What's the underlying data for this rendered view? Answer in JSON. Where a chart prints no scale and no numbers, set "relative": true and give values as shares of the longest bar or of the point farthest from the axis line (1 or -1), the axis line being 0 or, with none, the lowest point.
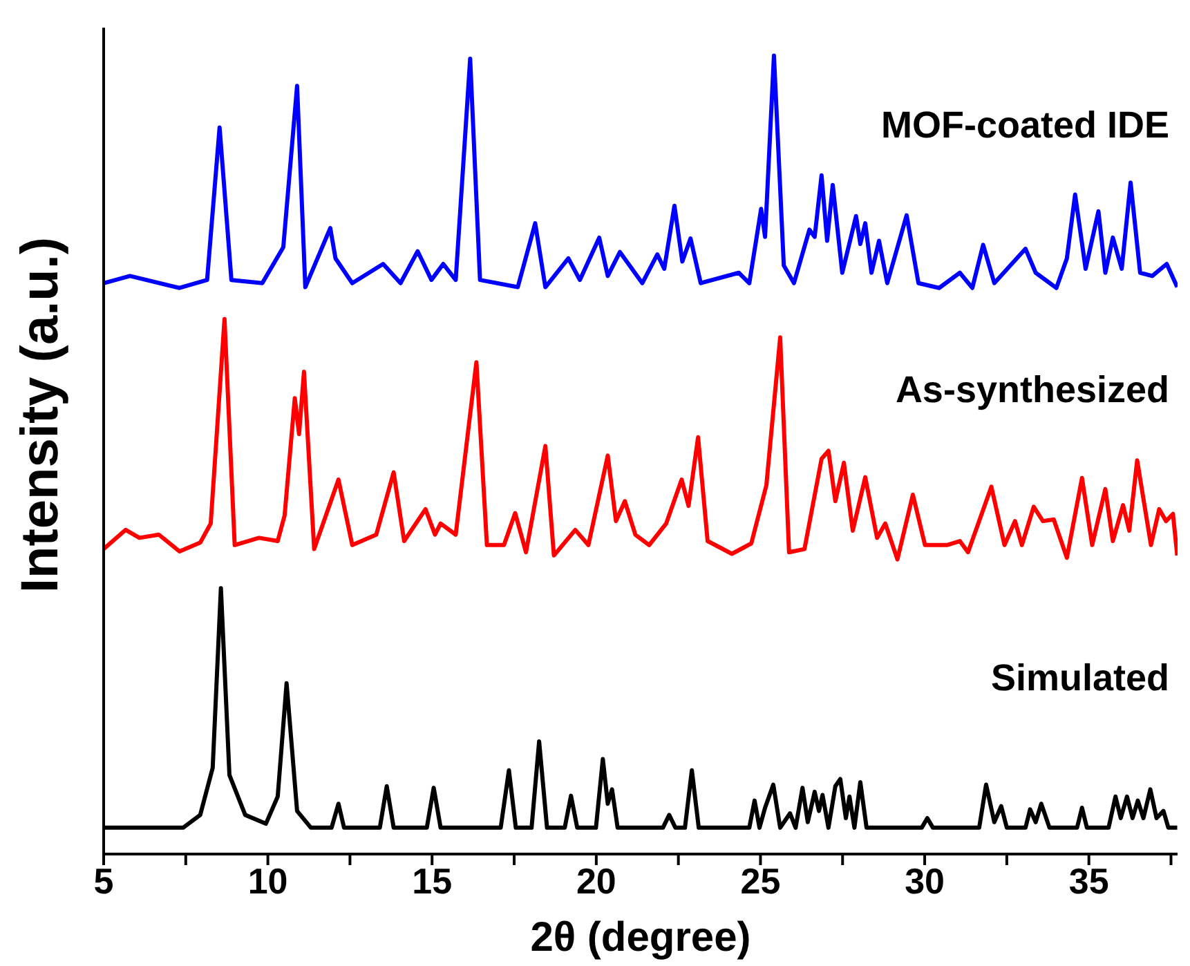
{
  "chart_data": {
    "type": "line",
    "relative": true,
    "xlabel": "2θ (degree)",
    "ylabel": "Intensity (a.u.)",
    "xlim": [
      5,
      37.7
    ],
    "xticks": [
      5,
      {
        "value": 7.5,
        "label": null
      },
      10,
      {
        "value": 12.5,
        "label": null
      },
      15,
      {
        "value": 17.5,
        "label": null
      },
      20,
      {
        "value": 22.5,
        "label": null
      },
      25,
      {
        "value": 27.5,
        "label": null
      },
      30,
      {
        "value": 32.5,
        "label": null
      },
      35,
      {
        "value": 37.5,
        "label": null
      }
    ],
    "series": [
      {
        "name": "MOF-coated IDE",
        "color": "#0000ff",
        "x": [
          5.0,
          5.8,
          7.31,
          8.15,
          8.53,
          8.89,
          9.83,
          10.47,
          10.89,
          11.14,
          11.9,
          12.06,
          12.57,
          13.51,
          14.04,
          14.56,
          14.98,
          15.34,
          15.72,
          16.16,
          16.46,
          17.61,
          18.14,
          18.45,
          19.15,
          19.5,
          20.09,
          20.35,
          20.72,
          21.4,
          21.86,
          22.07,
          22.38,
          22.62,
          22.87,
          23.18,
          24.34,
          24.66,
          25.02,
          25.14,
          25.41,
          25.71,
          26.02,
          26.49,
          26.65,
          26.86,
          27.03,
          27.2,
          27.49,
          27.91,
          28.04,
          28.19,
          28.38,
          28.61,
          28.86,
          29.45,
          29.81,
          30.44,
          31.07,
          31.45,
          31.78,
          32.12,
          33.07,
          33.38,
          34.01,
          34.33,
          34.58,
          34.9,
          35.29,
          35.5,
          35.73,
          36.0,
          36.27,
          36.56,
          36.93,
          37.37,
          37.69
        ],
        "values": [
          0.715,
          0.724,
          0.709,
          0.719,
          0.91,
          0.719,
          0.715,
          0.76,
          0.962,
          0.71,
          0.784,
          0.746,
          0.715,
          0.739,
          0.715,
          0.755,
          0.719,
          0.739,
          0.719,
          0.996,
          0.719,
          0.71,
          0.79,
          0.71,
          0.746,
          0.719,
          0.772,
          0.724,
          0.754,
          0.715,
          0.751,
          0.733,
          0.812,
          0.742,
          0.771,
          0.715,
          0.728,
          0.715,
          0.808,
          0.773,
          1.0,
          0.737,
          0.715,
          0.782,
          0.773,
          0.85,
          0.768,
          0.838,
          0.728,
          0.799,
          0.764,
          0.79,
          0.728,
          0.768,
          0.715,
          0.8,
          0.715,
          0.709,
          0.728,
          0.709,
          0.763,
          0.715,
          0.758,
          0.728,
          0.709,
          0.746,
          0.826,
          0.733,
          0.805,
          0.728,
          0.772,
          0.733,
          0.841,
          0.728,
          0.724,
          0.739,
          0.71
        ]
      },
      {
        "name": "As-synthesized",
        "color": "#ff0000",
        "x": [
          5.0,
          5.67,
          6.09,
          6.68,
          7.31,
          7.94,
          8.26,
          8.68,
          8.99,
          9.73,
          10.3,
          10.51,
          10.82,
          10.95,
          11.1,
          11.41,
          12.15,
          12.57,
          13.3,
          13.83,
          14.15,
          14.8,
          15.09,
          15.26,
          15.72,
          16.35,
          16.67,
          17.19,
          17.53,
          17.86,
          18.45,
          18.71,
          19.36,
          19.76,
          20.35,
          20.6,
          20.87,
          21.19,
          21.61,
          22.13,
          22.6,
          22.81,
          23.1,
          23.39,
          24.13,
          24.72,
          25.18,
          25.6,
          25.87,
          26.34,
          26.86,
          27.07,
          27.28,
          27.54,
          27.81,
          28.19,
          28.55,
          28.8,
          29.17,
          29.64,
          30.01,
          30.68,
          31.07,
          31.32,
          32.03,
          32.43,
          32.75,
          32.96,
          33.32,
          33.6,
          33.93,
          34.33,
          34.79,
          35.1,
          35.5,
          35.73,
          36.04,
          36.23,
          36.47,
          36.89,
          37.14,
          37.35,
          37.56,
          37.69
        ],
        "values": [
          0.382,
          0.406,
          0.396,
          0.4,
          0.379,
          0.39,
          0.414,
          0.67,
          0.387,
          0.396,
          0.392,
          0.424,
          0.571,
          0.526,
          0.604,
          0.382,
          0.469,
          0.387,
          0.4,
          0.478,
          0.392,
          0.432,
          0.4,
          0.414,
          0.4,
          0.616,
          0.387,
          0.387,
          0.427,
          0.378,
          0.511,
          0.374,
          0.406,
          0.387,
          0.499,
          0.417,
          0.442,
          0.4,
          0.387,
          0.414,
          0.469,
          0.436,
          0.522,
          0.392,
          0.376,
          0.389,
          0.462,
          0.647,
          0.378,
          0.382,
          0.495,
          0.505,
          0.442,
          0.49,
          0.405,
          0.472,
          0.396,
          0.414,
          0.369,
          0.45,
          0.387,
          0.387,
          0.392,
          0.378,
          0.46,
          0.387,
          0.417,
          0.387,
          0.435,
          0.417,
          0.419,
          0.371,
          0.471,
          0.387,
          0.457,
          0.392,
          0.437,
          0.405,
          0.493,
          0.387,
          0.432,
          0.417,
          0.426,
          0.374
        ]
      },
      {
        "name": "Simulated",
        "color": "#000000",
        "x": [
          5.0,
          7.42,
          7.94,
          8.32,
          8.57,
          8.83,
          9.31,
          9.94,
          10.3,
          10.57,
          10.89,
          11.31,
          11.94,
          12.15,
          12.32,
          13.41,
          13.62,
          13.83,
          14.84,
          15.05,
          15.26,
          17.09,
          17.34,
          17.55,
          18.03,
          18.26,
          18.5,
          19.04,
          19.23,
          19.42,
          19.99,
          20.2,
          20.35,
          20.48,
          20.65,
          22.03,
          22.22,
          22.41,
          22.7,
          22.91,
          23.12,
          24.66,
          24.82,
          24.97,
          25.14,
          25.39,
          25.6,
          25.9,
          26.07,
          26.28,
          26.44,
          26.65,
          26.78,
          26.89,
          27.07,
          27.28,
          27.43,
          27.6,
          27.71,
          27.86,
          28.04,
          28.23,
          29.91,
          30.08,
          30.25,
          31.66,
          31.87,
          32.12,
          32.33,
          32.5,
          33.07,
          33.21,
          33.38,
          33.55,
          33.8,
          34.64,
          34.79,
          34.94,
          35.6,
          35.81,
          35.97,
          36.16,
          36.33,
          36.49,
          36.66,
          36.87,
          37.06,
          37.27,
          37.42,
          37.69
        ],
        "values": [
          0.033,
          0.033,
          0.049,
          0.108,
          0.333,
          0.099,
          0.049,
          0.038,
          0.072,
          0.214,
          0.054,
          0.033,
          0.033,
          0.063,
          0.033,
          0.033,
          0.085,
          0.033,
          0.033,
          0.083,
          0.033,
          0.033,
          0.105,
          0.033,
          0.033,
          0.141,
          0.033,
          0.033,
          0.073,
          0.033,
          0.033,
          0.119,
          0.063,
          0.081,
          0.033,
          0.033,
          0.049,
          0.033,
          0.033,
          0.105,
          0.033,
          0.033,
          0.067,
          0.033,
          0.058,
          0.087,
          0.033,
          0.051,
          0.033,
          0.083,
          0.04,
          0.078,
          0.054,
          0.074,
          0.033,
          0.085,
          0.094,
          0.045,
          0.072,
          0.033,
          0.09,
          0.033,
          0.033,
          0.045,
          0.033,
          0.033,
          0.087,
          0.04,
          0.06,
          0.033,
          0.033,
          0.056,
          0.04,
          0.063,
          0.033,
          0.033,
          0.058,
          0.033,
          0.033,
          0.072,
          0.045,
          0.072,
          0.045,
          0.067,
          0.045,
          0.081,
          0.045,
          0.054,
          0.033,
          0.033
        ]
      }
    ]
  }
}
